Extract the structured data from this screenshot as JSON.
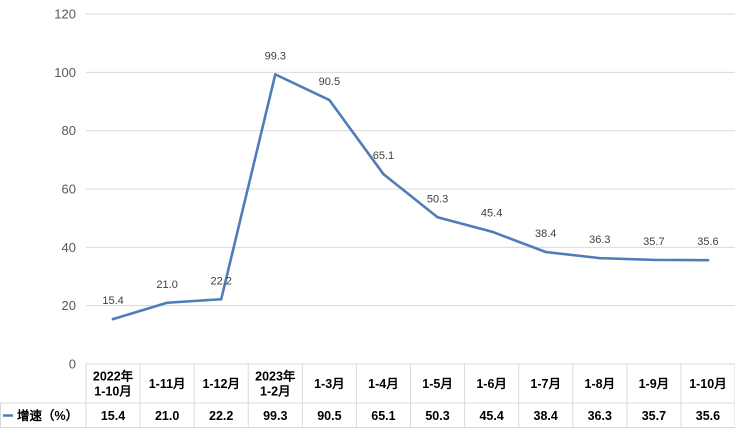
{
  "chart_data": {
    "type": "line",
    "categories": [
      [
        "2022年",
        "1-10月"
      ],
      [
        "1-11月"
      ],
      [
        "1-12月"
      ],
      [
        "2023年",
        "1-2月"
      ],
      [
        "1-3月"
      ],
      [
        "1-4月"
      ],
      [
        "1-5月"
      ],
      [
        "1-6月"
      ],
      [
        "1-7月"
      ],
      [
        "1-8月"
      ],
      [
        "1-9月"
      ],
      [
        "1-10月"
      ]
    ],
    "series": [
      {
        "name": "增速（%）",
        "values": [
          15.4,
          21.0,
          22.2,
          99.3,
          90.5,
          65.1,
          50.3,
          45.4,
          38.4,
          36.3,
          35.7,
          35.6
        ],
        "value_labels": [
          "15.4",
          "21.0",
          "22.2",
          "99.3",
          "90.5",
          "65.1",
          "50.3",
          "45.4",
          "38.4",
          "36.3",
          "35.7",
          "35.6"
        ],
        "color": "#4E7DB7"
      }
    ],
    "ylim": [
      0,
      120
    ],
    "yticks": [
      0,
      20,
      40,
      60,
      80,
      100,
      120
    ],
    "grid": true,
    "data_table": true,
    "legend": "data-table-left",
    "colors": {
      "grid": "#D9D9D9",
      "axis_text": "#595959",
      "line": "#4E7DB7"
    }
  }
}
